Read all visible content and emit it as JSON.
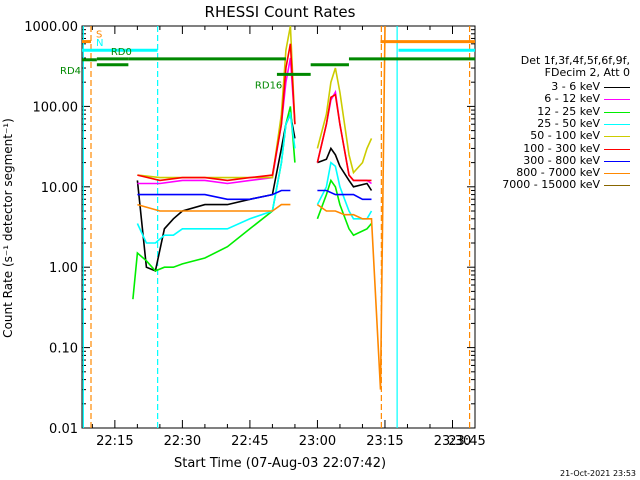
{
  "chart_data": {
    "type": "line",
    "title": "RHESSI Count Rates",
    "xlabel": "Start Time (07-Aug-03 22:07:42)",
    "ylabel": "Count Rate (s⁻¹ detector segment⁻¹)",
    "yscale": "log",
    "ylim": [
      0.01,
      1000
    ],
    "xlim_minutes_after_22:00": [
      7.7,
      47
    ],
    "y_tick_labels": [
      "0.01",
      "0.10",
      "1.00",
      "10.00",
      "100.00",
      "1000.00"
    ],
    "x_tick_labels": [
      "22:15",
      "22:30",
      "22:45",
      "23:00",
      "23:15",
      "23:30",
      "23:45"
    ],
    "legend_header": [
      "Det 1f,3f,4f,5f,6f,9f,",
      "FDecim 2, Att 0"
    ],
    "series": [
      {
        "name": "3 - 6 keV",
        "color": "#000000",
        "x": [
          20,
          22,
          24,
          26,
          28,
          30,
          35,
          40,
          45,
          50,
          52,
          53,
          54,
          55,
          58,
          60,
          62,
          63,
          64,
          65,
          67,
          68,
          71,
          72
        ],
        "y": [
          12,
          1.0,
          0.9,
          3,
          4,
          5,
          6,
          6,
          7,
          8,
          30,
          60,
          80,
          40,
          null,
          20,
          22,
          30,
          25,
          18,
          12,
          10,
          11,
          9
        ]
      },
      {
        "name": "6 - 12 keV",
        "color": "#ff00ff",
        "x": [
          20,
          25,
          30,
          35,
          40,
          45,
          50,
          52,
          53,
          54,
          55,
          58,
          60,
          62,
          63,
          64,
          65,
          67,
          68,
          71,
          72
        ],
        "y": [
          11,
          11,
          12,
          12,
          11,
          12,
          13,
          60,
          200,
          400,
          60,
          null,
          20,
          60,
          120,
          150,
          60,
          14,
          12,
          12,
          11
        ]
      },
      {
        "name": "12 - 25 keV",
        "color": "#00ee00",
        "x": [
          19,
          20,
          22,
          24,
          26,
          28,
          30,
          35,
          40,
          45,
          50,
          52,
          53,
          54,
          55,
          58,
          60,
          62,
          63,
          64,
          65,
          67,
          68,
          71,
          72
        ],
        "y": [
          0.4,
          1.5,
          1.2,
          0.9,
          1.0,
          1.0,
          1.1,
          1.3,
          1.8,
          3,
          5,
          20,
          60,
          100,
          20,
          null,
          4,
          8,
          12,
          10,
          6,
          3,
          2.5,
          3,
          3.5
        ]
      },
      {
        "name": "25 - 50 keV",
        "color": "#00ffff",
        "x": [
          20,
          22,
          24,
          26,
          28,
          30,
          35,
          40,
          45,
          50,
          52,
          53,
          54,
          55,
          58,
          60,
          62,
          63,
          64,
          65,
          67,
          68,
          71,
          72
        ],
        "y": [
          3.5,
          2,
          2,
          2.5,
          2.5,
          3,
          3,
          3,
          4,
          5,
          20,
          60,
          80,
          30,
          null,
          6,
          10,
          20,
          18,
          10,
          5,
          4,
          4,
          5
        ]
      },
      {
        "name": "50 - 100 keV",
        "color": "#cccc00",
        "x": [
          20,
          25,
          30,
          35,
          40,
          45,
          50,
          52,
          53,
          54,
          55,
          58,
          60,
          62,
          63,
          64,
          65,
          67,
          68,
          70,
          71,
          72
        ],
        "y": [
          14,
          13,
          13,
          13,
          13,
          13,
          13,
          80,
          500,
          1000,
          60,
          null,
          30,
          80,
          200,
          300,
          150,
          25,
          15,
          20,
          30,
          40
        ]
      },
      {
        "name": "100 - 300 keV",
        "color": "#ff0000",
        "x": [
          20,
          25,
          30,
          35,
          40,
          45,
          50,
          52,
          53,
          54,
          55,
          58,
          60,
          62,
          63,
          64,
          65,
          67,
          68,
          71,
          72
        ],
        "y": [
          14,
          12,
          13,
          13,
          12,
          13,
          14,
          60,
          300,
          600,
          60,
          null,
          20,
          60,
          130,
          140,
          60,
          14,
          12,
          12,
          12
        ]
      },
      {
        "name": "300 - 800 keV",
        "color": "#0000ff",
        "x": [
          20,
          25,
          30,
          35,
          40,
          45,
          50,
          52,
          53,
          54,
          58,
          60,
          62,
          64,
          66,
          68,
          70,
          72
        ],
        "y": [
          8,
          8,
          8,
          8,
          7,
          7,
          8,
          9,
          9,
          9,
          null,
          9,
          9,
          8,
          8,
          8,
          7,
          7
        ]
      },
      {
        "name": "800 - 7000 keV",
        "color": "#ff8800",
        "x": [
          20,
          25,
          30,
          35,
          40,
          45,
          50,
          52,
          53,
          54,
          58,
          60,
          62,
          64,
          66,
          68,
          70,
          72,
          74,
          75
        ],
        "y": [
          6,
          5,
          5,
          5,
          5,
          5,
          5,
          6,
          6,
          6,
          null,
          6,
          5,
          5,
          4.5,
          4.5,
          4,
          4,
          0.03,
          1000
        ]
      },
      {
        "name": "7000 - 15000 keV",
        "color": "#886600",
        "x": [],
        "y": []
      }
    ],
    "vertical_markers": [
      {
        "x": 8.0,
        "color": "#00ffff"
      },
      {
        "x": 9.7,
        "color": "#ff8800"
      },
      {
        "x": 24.5,
        "color": "#00ffff"
      },
      {
        "x": 74.2,
        "color": "#ff8800"
      },
      {
        "x": 77.7,
        "color": "#00ffff"
      },
      {
        "x": 93.8,
        "color": "#ff8800"
      }
    ],
    "state_bars": [
      {
        "label": "S",
        "color": "#ff8800",
        "x_start": 7.7,
        "x_end": 9.7,
        "y": 640
      },
      {
        "label": "N",
        "color": "#00ffff",
        "x_start": 7.7,
        "x_end": 24.5,
        "y": 500
      },
      {
        "label": "RD0",
        "color": "#008800",
        "x_start": 11,
        "x_end": 18,
        "y": 390
      },
      {
        "label": "RD4",
        "color": "#008800",
        "x_start": 7.7,
        "x_end": 11,
        "y": 380
      },
      {
        "label": "",
        "color": "#008800",
        "x_start": 11,
        "x_end": 18,
        "y": 330
      },
      {
        "label": "",
        "color": "#008800",
        "x_start": 18,
        "x_end": 53,
        "y": 390
      },
      {
        "label": "RD16",
        "color": "#008800",
        "x_start": 51,
        "x_end": 58.5,
        "y": 250
      },
      {
        "label": "",
        "color": "#008800",
        "x_start": 58.5,
        "x_end": 67,
        "y": 330
      },
      {
        "label": "",
        "color": "#008800",
        "x_start": 67,
        "x_end": 95,
        "y": 390
      },
      {
        "label": "",
        "color": "#ff8800",
        "x_start": 74,
        "x_end": 95,
        "y": 640
      },
      {
        "label": "",
        "color": "#00ffff",
        "x_start": 78,
        "x_end": 95,
        "y": 500
      }
    ]
  },
  "footer": {
    "timestamp": "21-Oct-2021 23:53"
  }
}
